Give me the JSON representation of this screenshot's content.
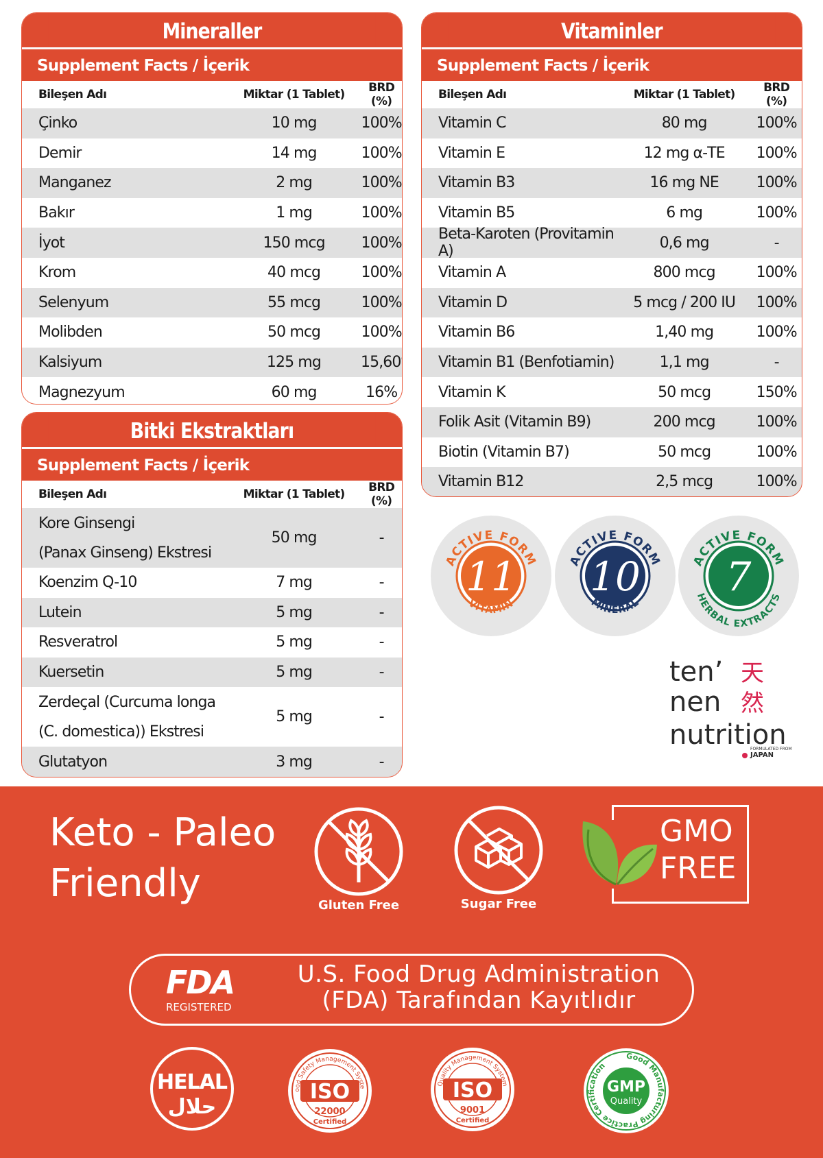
{
  "minerals": {
    "title": "Mineraller",
    "facts": "Supplement Facts / İçerik",
    "headers": {
      "name": "Bileşen Adı",
      "amount": "Miktar (1 Tablet)",
      "brd": "BRD (%)"
    },
    "rows": [
      {
        "name": "Çinko",
        "amount": "10 mg",
        "brd": "100%"
      },
      {
        "name": "Demir",
        "amount": "14 mg",
        "brd": "100%"
      },
      {
        "name": "Manganez",
        "amount": "2 mg",
        "brd": "100%"
      },
      {
        "name": "Bakır",
        "amount": "1 mg",
        "brd": "100%"
      },
      {
        "name": "İyot",
        "amount": "150 mcg",
        "brd": "100%"
      },
      {
        "name": "Krom",
        "amount": "40 mcg",
        "brd": "100%"
      },
      {
        "name": "Selenyum",
        "amount": "55 mcg",
        "brd": "100%"
      },
      {
        "name": "Molibden",
        "amount": "50 mcg",
        "brd": "100%"
      },
      {
        "name": "Kalsiyum",
        "amount": "125 mg",
        "brd": "15,60%"
      },
      {
        "name": "Magnezyum",
        "amount": "60 mg",
        "brd": "16%"
      }
    ]
  },
  "vitamins": {
    "title": "Vitaminler",
    "facts": "Supplement Facts / İçerik",
    "headers": {
      "name": "Bileşen Adı",
      "amount": "Miktar (1 Tablet)",
      "brd": "BRD (%)"
    },
    "rows": [
      {
        "name": "Vitamin C",
        "amount": "80 mg",
        "brd": "100%"
      },
      {
        "name": "Vitamin E",
        "amount": "12 mg α-TE",
        "brd": "100%"
      },
      {
        "name": "Vitamin B3",
        "amount": "16 mg NE",
        "brd": "100%"
      },
      {
        "name": "Vitamin B5",
        "amount": "6 mg",
        "brd": "100%"
      },
      {
        "name": "Beta-Karoten (Provitamin A)",
        "amount": "0,6 mg",
        "brd": "-"
      },
      {
        "name": "Vitamin A",
        "amount": "800 mcg",
        "brd": "100%"
      },
      {
        "name": "Vitamin D",
        "amount": "5 mcg / 200 IU",
        "brd": "100%"
      },
      {
        "name": "Vitamin B6",
        "amount": "1,40 mg",
        "brd": "100%"
      },
      {
        "name": "Vitamin B1 (Benfotiamin)",
        "amount": "1,1 mg",
        "brd": "-"
      },
      {
        "name": "Vitamin K",
        "amount": "50 mcg",
        "brd": "150%"
      },
      {
        "name": "Folik Asit (Vitamin B9)",
        "amount": "200 mcg",
        "brd": "100%"
      },
      {
        "name": "Biotin (Vitamin B7)",
        "amount": "50 mcg",
        "brd": "100%"
      },
      {
        "name": "Vitamin B12",
        "amount": "2,5 mcg",
        "brd": "100%"
      }
    ]
  },
  "herbal": {
    "title": "Bitki Ekstraktları",
    "facts": "Supplement Facts / İçerik",
    "headers": {
      "name": "Bileşen Adı",
      "amount": "Miktar (1 Tablet)",
      "brd": "BRD (%)"
    },
    "rows": [
      {
        "name1": "Kore Ginsengi",
        "name2": "(Panax Ginseng) Ekstresi",
        "amount": "50 mg",
        "brd": "-"
      },
      {
        "name1": "Koenzim Q-10",
        "name2": "",
        "amount": "7 mg",
        "brd": "-"
      },
      {
        "name1": "Lutein",
        "name2": "",
        "amount": "5 mg",
        "brd": "-"
      },
      {
        "name1": "Resveratrol",
        "name2": "",
        "amount": "5 mg",
        "brd": "-"
      },
      {
        "name1": "Kuersetin",
        "name2": "",
        "amount": "5 mg",
        "brd": "-"
      },
      {
        "name1": "Zerdeçal (Curcuma longa",
        "name2": "(C. domestica)) Ekstresi",
        "amount": "5 mg",
        "brd": "-"
      },
      {
        "name1": "Glutatyon",
        "name2": "",
        "amount": "3 mg",
        "brd": "-"
      }
    ]
  },
  "badges": [
    {
      "top": "ACTIVE FORM",
      "number": "11",
      "bottom": "VITAMIN",
      "color": "#e8692a",
      "ring": "#e8692a"
    },
    {
      "top": "ACTIVE FORM",
      "number": "10",
      "bottom": "MINERAL",
      "color": "#1f3766",
      "ring": "#1f3766"
    },
    {
      "top": "ACTIVE FORM",
      "number": "7",
      "bottom": "HERBAL EXTRACTS",
      "color": "#17804a",
      "ring": "#17804a"
    }
  ],
  "brand": {
    "line1": "ten’",
    "line2": "nen",
    "line3": "nutrition",
    "kanji1": "天",
    "kanji2": "然",
    "tag1": "FORMULATED FROM",
    "tag2": "JAPAN"
  },
  "footer": {
    "keto1": "Keto - Paleo",
    "keto2": "Friendly",
    "gluten": "Gluten Free",
    "sugar": "Sugar Free",
    "gmo1": "GMO",
    "gmo2": "FREE",
    "fda_logo": "FDA",
    "fda_registered": "REGISTERED",
    "fda_line1": "U.S. Food Drug Administration",
    "fda_line2": "(FDA) Tarafından Kayıtlıdır",
    "helal": "HELAL",
    "helal_arabic": "حلال",
    "iso1_top": "Food Safety Management System",
    "iso1_num": "22000",
    "iso1_cert": "Certified",
    "iso2_top": "Quality Management System",
    "iso2_num": "9001",
    "iso2_cert": "Certified",
    "iso_label": "ISO",
    "gmp_ring": "Good Manufacturing Practice Certification",
    "gmp1": "GMP",
    "gmp2": "Quality"
  },
  "colors": {
    "brand_red": "#de4b30",
    "row_gray": "#e0e0e0"
  }
}
